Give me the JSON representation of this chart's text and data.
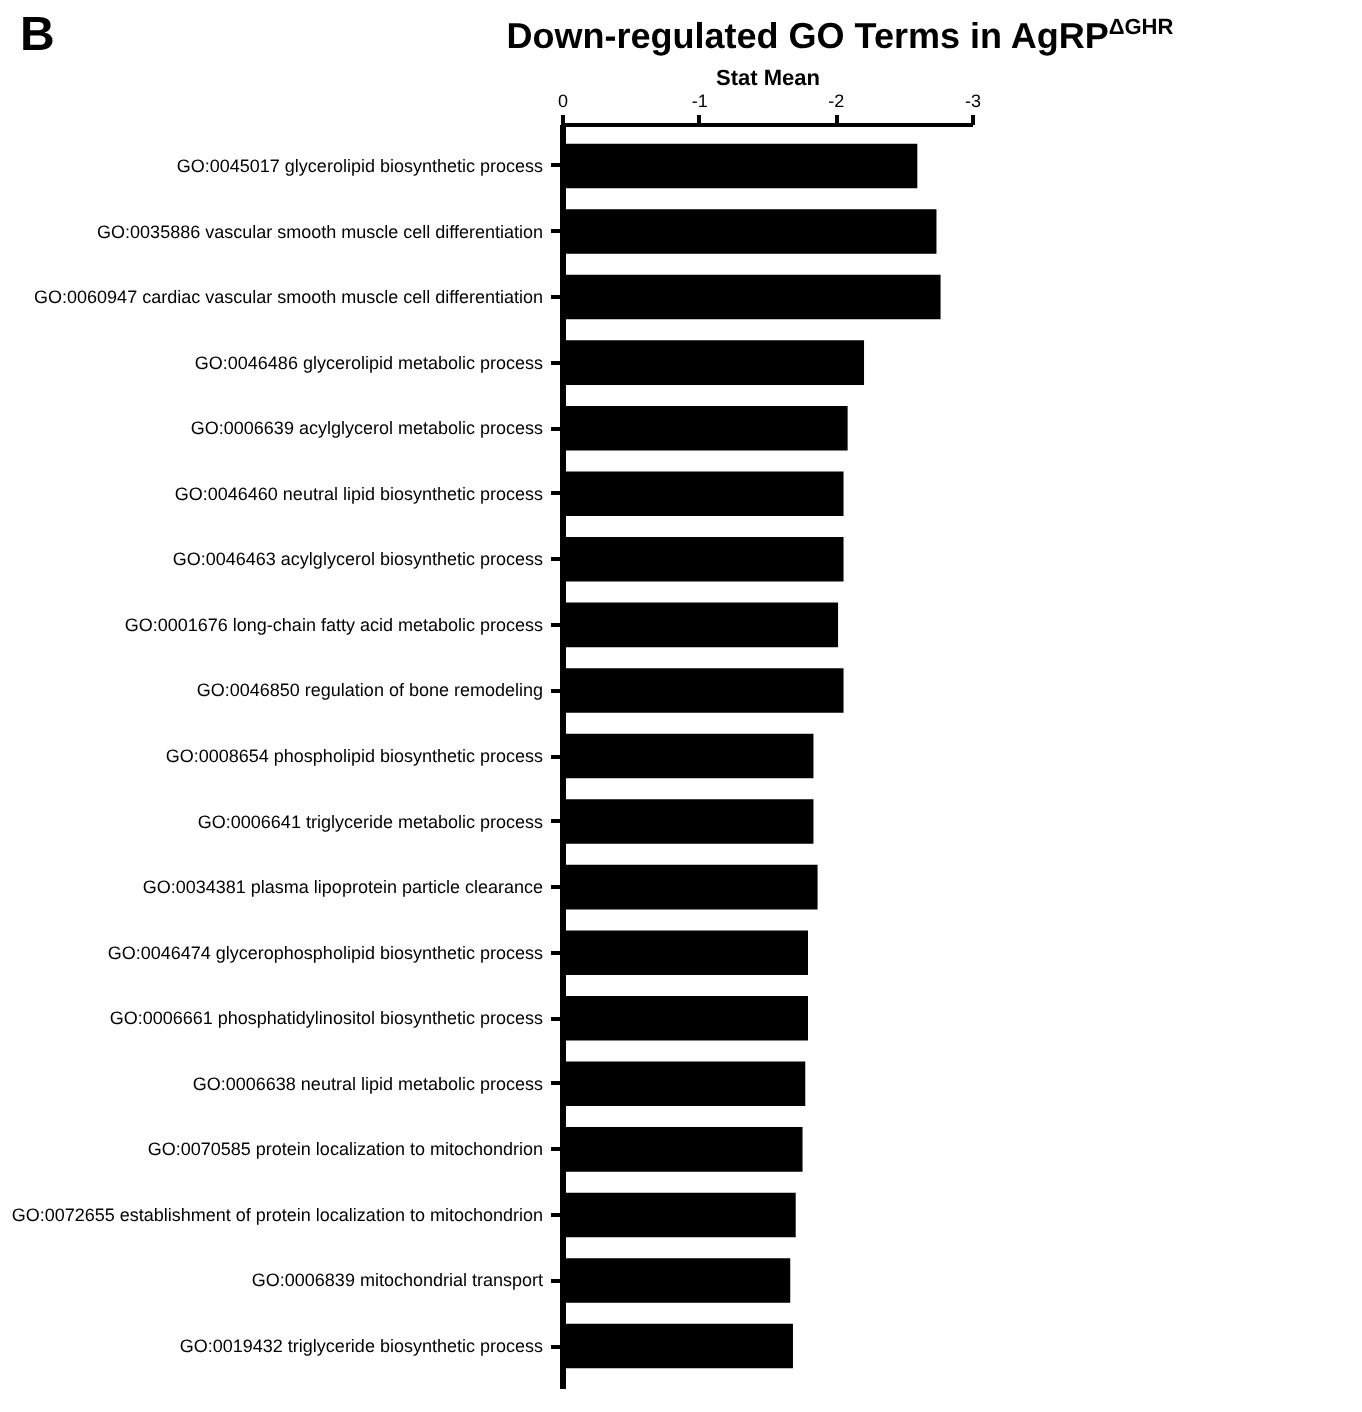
{
  "chart_data": {
    "type": "bar",
    "orientation": "horizontal",
    "title": "Down-regulated GO Terms in AgRP$^{ΔGHR}$",
    "xlabel": "Stat Mean",
    "annotations": [
      "B"
    ],
    "categories": [
      "GO:0045017 glycerolipid biosynthetic process",
      "GO:0035886 vascular smooth muscle cell differentiation",
      "GO:0060947 cardiac vascular smooth muscle cell differentiation",
      "GO:0046486 glycerolipid metabolic process",
      "GO:0006639 acylglycerol metabolic process",
      "GO:0046460 neutral lipid biosynthetic process",
      "GO:0046463 acylglycerol biosynthetic process",
      "GO:0001676 long-chain fatty acid metabolic process",
      "GO:0046850 regulation of bone remodeling",
      "GO:0008654 phospholipid biosynthetic process",
      "GO:0006641 triglyceride metabolic process",
      "GO:0034381 plasma lipoprotein particle clearance",
      "GO:0046474 glycerophospholipid biosynthetic process",
      "GO:0006661 phosphatidylinositol biosynthetic process",
      "GO:0006638 neutral lipid metabolic process",
      "GO:0070585 protein localization to mitochondrion",
      "GO:0072655 establishment of protein localization to mitochondrion",
      "GO:0006839 mitochondrial transport",
      "GO:0019432 triglyceride biosynthetic process"
    ],
    "values": [
      -2.6,
      -2.74,
      -2.77,
      -2.21,
      -2.09,
      -2.06,
      -2.06,
      -2.02,
      -2.06,
      -1.84,
      -1.84,
      -1.87,
      -1.8,
      -1.8,
      -1.78,
      -1.76,
      -1.71,
      -1.67,
      -1.69
    ],
    "color": "#000000",
    "xlim": [
      0,
      -3
    ],
    "xticks": [
      0,
      -1,
      -2,
      -3
    ]
  }
}
